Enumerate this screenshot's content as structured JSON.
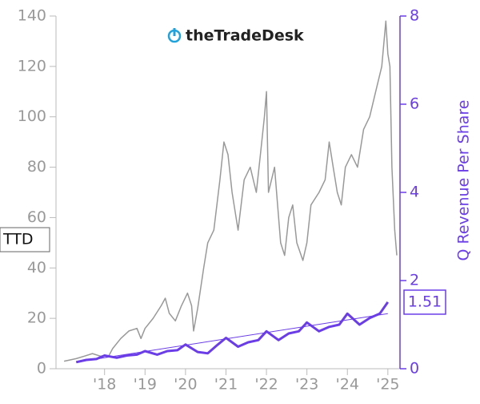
{
  "chart_data": {
    "type": "line",
    "logo": "theTradeDesk",
    "y2label": "Q Revenue Per Share",
    "xlim": [
      2016.8,
      2025.3
    ],
    "xticks": [
      {
        "value": 2018,
        "label": "'18"
      },
      {
        "value": 2019,
        "label": "'19"
      },
      {
        "value": 2020,
        "label": "'20"
      },
      {
        "value": 2021,
        "label": "'21"
      },
      {
        "value": 2022,
        "label": "'22"
      },
      {
        "value": 2023,
        "label": "'23"
      },
      {
        "value": 2024,
        "label": "'24"
      },
      {
        "value": 2025,
        "label": "'25"
      }
    ],
    "ylim": [
      0,
      140
    ],
    "yticks": [
      0,
      20,
      40,
      60,
      80,
      100,
      120,
      140
    ],
    "y2lim": [
      0,
      8
    ],
    "y2ticks": [
      0,
      2,
      4,
      6,
      8
    ],
    "series": [
      {
        "name": "TTD",
        "color": "#999999",
        "x": [
          2017.0,
          2017.3,
          2017.5,
          2017.7,
          2017.9,
          2018.1,
          2018.2,
          2018.4,
          2018.6,
          2018.8,
          2018.9,
          2019.0,
          2019.2,
          2019.4,
          2019.5,
          2019.6,
          2019.75,
          2019.9,
          2020.05,
          2020.15,
          2020.2,
          2020.3,
          2020.45,
          2020.55,
          2020.7,
          2020.85,
          2020.95,
          2021.05,
          2021.15,
          2021.3,
          2021.45,
          2021.6,
          2021.75,
          2021.85,
          2021.95,
          2022.0,
          2022.05,
          2022.2,
          2022.35,
          2022.45,
          2022.55,
          2022.65,
          2022.75,
          2022.9,
          2023.0,
          2023.1,
          2023.3,
          2023.45,
          2023.55,
          2023.65,
          2023.75,
          2023.85,
          2023.95,
          2024.1,
          2024.25,
          2024.4,
          2024.55,
          2024.7,
          2024.85,
          2024.95,
          2025.0,
          2025.05,
          2025.1,
          2025.17,
          2025.22
        ],
        "values": [
          3,
          4,
          5,
          6,
          5,
          5,
          8,
          12,
          15,
          16,
          12,
          16,
          20,
          25,
          28,
          22,
          19,
          25,
          30,
          25,
          15,
          24,
          40,
          50,
          55,
          75,
          90,
          85,
          70,
          55,
          75,
          80,
          70,
          85,
          100,
          110,
          70,
          80,
          50,
          45,
          60,
          65,
          50,
          43,
          50,
          65,
          70,
          75,
          90,
          80,
          70,
          65,
          80,
          85,
          80,
          95,
          100,
          110,
          120,
          138,
          125,
          120,
          80,
          55,
          45
        ]
      },
      {
        "name": "Q Revenue Per Share",
        "color": "#6a3de8",
        "axis": "y2",
        "last_value_label": "1.51",
        "x": [
          2017.3,
          2017.55,
          2017.8,
          2018.0,
          2018.3,
          2018.55,
          2018.8,
          2019.0,
          2019.3,
          2019.55,
          2019.8,
          2020.0,
          2020.3,
          2020.55,
          2020.8,
          2021.0,
          2021.3,
          2021.55,
          2021.8,
          2022.0,
          2022.3,
          2022.55,
          2022.8,
          2023.0,
          2023.3,
          2023.55,
          2023.8,
          2024.0,
          2024.3,
          2024.55,
          2024.8,
          2025.0
        ],
        "values": [
          0.15,
          0.2,
          0.22,
          0.3,
          0.25,
          0.3,
          0.32,
          0.4,
          0.32,
          0.4,
          0.42,
          0.55,
          0.38,
          0.35,
          0.55,
          0.7,
          0.5,
          0.6,
          0.65,
          0.85,
          0.65,
          0.8,
          0.85,
          1.05,
          0.85,
          0.95,
          1.0,
          1.25,
          1.0,
          1.15,
          1.25,
          1.51
        ]
      }
    ],
    "trend": {
      "color": "#6a3de8",
      "axis": "y2",
      "x": [
        2017.3,
        2025.0
      ],
      "values": [
        0.15,
        1.25
      ]
    }
  }
}
